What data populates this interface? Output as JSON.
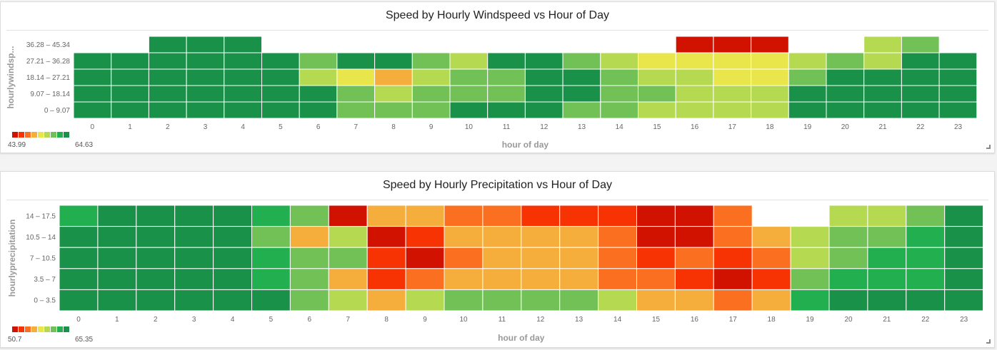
{
  "palette": [
    "#d21200",
    "#f73304",
    "#fb6f21",
    "#f5ad3b",
    "#e9e64c",
    "#b5da52",
    "#72c157",
    "#21af4f",
    "#1a9149"
  ],
  "chart_data": [
    {
      "type": "heatmap",
      "title": "Speed by Hourly Windspeed vs Hour of Day",
      "xlabel": "hour of day",
      "ylabel": "hourlywindsp...",
      "x_categories": [
        "0",
        "1",
        "2",
        "3",
        "4",
        "5",
        "6",
        "7",
        "8",
        "9",
        "10",
        "11",
        "12",
        "13",
        "14",
        "15",
        "16",
        "17",
        "18",
        "19",
        "20",
        "21",
        "22",
        "23"
      ],
      "y_categories": [
        "36.28 – 45.34",
        "27.21 – 36.28",
        "18.14 – 27.21",
        "9.07 – 18.14",
        "0 – 9.07"
      ],
      "value_range": [
        43.99,
        64.63
      ],
      "legend": {
        "min_label": "43.99",
        "max_label": "64.63",
        "position": "bottom-left"
      },
      "values": [
        [
          null,
          null,
          64.0,
          64.0,
          64.0,
          null,
          null,
          null,
          null,
          null,
          null,
          null,
          null,
          null,
          null,
          null,
          44.0,
          44.0,
          44.0,
          null,
          null,
          56.0,
          58.0,
          null
        ],
        [
          64.0,
          64.0,
          64.0,
          64.0,
          64.0,
          62.5,
          58.0,
          62.5,
          62.5,
          58.0,
          56.0,
          64.0,
          64.0,
          58.0,
          56.0,
          54.0,
          54.0,
          54.0,
          54.0,
          56.0,
          58.0,
          56.0,
          64.0,
          64.0
        ],
        [
          64.0,
          64.0,
          64.0,
          64.0,
          64.0,
          62.5,
          56.0,
          54.0,
          51.5,
          56.0,
          58.0,
          60.0,
          62.5,
          62.5,
          58.0,
          56.0,
          56.0,
          54.0,
          54.0,
          58.0,
          62.5,
          64.0,
          64.0,
          64.0
        ],
        [
          64.0,
          64.0,
          64.0,
          64.0,
          64.0,
          64.0,
          62.5,
          58.0,
          56.0,
          58.0,
          58.0,
          60.0,
          62.5,
          62.5,
          60.0,
          58.0,
          56.0,
          56.0,
          56.0,
          62.5,
          64.0,
          64.0,
          64.0,
          64.0
        ],
        [
          64.0,
          64.0,
          64.0,
          64.0,
          64.0,
          64.0,
          62.5,
          58.0,
          58.0,
          58.0,
          62.5,
          64.0,
          64.0,
          58.0,
          58.0,
          56.0,
          56.0,
          56.0,
          56.0,
          64.0,
          64.0,
          64.0,
          64.0,
          64.0
        ]
      ]
    },
    {
      "type": "heatmap",
      "title": "Speed by Hourly Precipitation vs Hour of Day",
      "xlabel": "hour of day",
      "ylabel": "hourlyprecipitation",
      "x_categories": [
        "0",
        "1",
        "2",
        "3",
        "4",
        "5",
        "6",
        "7",
        "8",
        "9",
        "10",
        "11",
        "12",
        "13",
        "14",
        "15",
        "16",
        "17",
        "18",
        "19",
        "20",
        "21",
        "22",
        "23"
      ],
      "y_categories": [
        "14 – 17.5",
        "10.5 – 14",
        "7 – 10.5",
        "3.5 – 7",
        "0 – 3.5"
      ],
      "value_range": [
        50.7,
        65.35
      ],
      "legend": {
        "min_label": "50.7",
        "max_label": "65.35",
        "position": "bottom-left"
      },
      "values": [
        [
          63.6,
          65.0,
          65.0,
          65.0,
          65.0,
          63.6,
          60.5,
          50.9,
          56.0,
          56.0,
          54.6,
          54.6,
          53.2,
          53.2,
          53.2,
          51.8,
          50.9,
          54.6,
          null,
          null,
          58.9,
          58.9,
          60.5,
          65.0
        ],
        [
          65.0,
          65.0,
          65.0,
          65.0,
          65.0,
          60.5,
          56.0,
          58.9,
          50.9,
          53.2,
          56.0,
          56.0,
          56.0,
          56.0,
          54.6,
          51.8,
          51.8,
          54.6,
          56.0,
          58.9,
          60.5,
          60.5,
          63.6,
          65.0
        ],
        [
          65.0,
          65.0,
          65.0,
          65.0,
          65.0,
          63.6,
          60.5,
          60.5,
          53.2,
          51.8,
          54.6,
          56.0,
          56.0,
          56.0,
          54.6,
          53.2,
          54.6,
          53.2,
          54.6,
          58.9,
          60.5,
          63.6,
          63.6,
          65.0
        ],
        [
          65.0,
          65.0,
          65.0,
          65.0,
          65.0,
          63.6,
          60.5,
          56.0,
          53.2,
          54.6,
          56.0,
          56.0,
          56.0,
          56.0,
          54.6,
          54.6,
          53.2,
          51.8,
          53.2,
          60.5,
          63.6,
          63.6,
          63.6,
          65.0
        ],
        [
          65.0,
          65.0,
          65.0,
          65.0,
          65.0,
          65.0,
          60.5,
          58.9,
          56.0,
          58.9,
          60.5,
          60.5,
          60.5,
          60.5,
          58.9,
          56.0,
          56.0,
          54.6,
          56.0,
          63.6,
          65.0,
          65.0,
          65.0,
          65.0
        ]
      ]
    }
  ]
}
